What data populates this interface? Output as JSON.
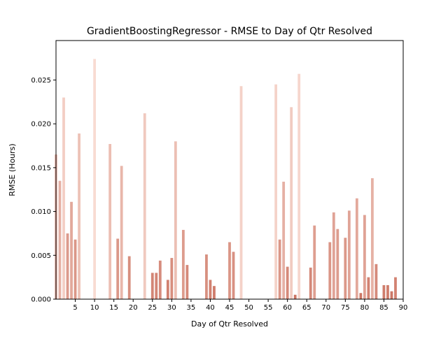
{
  "chart_data": {
    "type": "bar",
    "title": "GradientBoostingRegressor - RMSE to Day of Qtr Resolved",
    "xlabel": "Day of Qtr Resolved",
    "ylabel": "RMSE (Hours)",
    "xlim": [
      0,
      90
    ],
    "ylim": [
      0,
      0.0295
    ],
    "xticks": [
      5,
      10,
      15,
      20,
      25,
      30,
      35,
      40,
      45,
      50,
      55,
      60,
      65,
      70,
      75,
      80,
      85,
      90
    ],
    "xtick_labels": [
      "5",
      "10",
      "15",
      "20",
      "25",
      "30",
      "35",
      "40",
      "45",
      "50",
      "55",
      "60",
      "65",
      "70",
      "75",
      "80",
      "85",
      "90"
    ],
    "yticks": [
      0,
      0.005,
      0.01,
      0.015,
      0.02,
      0.025
    ],
    "ytick_labels": [
      "0.000",
      "0.005",
      "0.010",
      "0.015",
      "0.020",
      "0.025"
    ],
    "grid": false,
    "color_scale": {
      "high": "#f8dbd2",
      "low": "#c96e5c"
    },
    "x": [
      0,
      1,
      2,
      3,
      4,
      5,
      6,
      10,
      14,
      16,
      17,
      19,
      23,
      25,
      26,
      27,
      29,
      30,
      31,
      33,
      34,
      39,
      40,
      41,
      45,
      46,
      48,
      57,
      58,
      59,
      60,
      61,
      62,
      63,
      66,
      67,
      71,
      72,
      73,
      75,
      76,
      78,
      79,
      80,
      81,
      82,
      83,
      85,
      86,
      87,
      88
    ],
    "values": [
      0.0165,
      0.0135,
      0.023,
      0.0075,
      0.0111,
      0.0068,
      0.0189,
      0.0274,
      0.0177,
      0.0069,
      0.0152,
      0.0049,
      0.0212,
      0.003,
      0.003,
      0.0044,
      0.0022,
      0.0047,
      0.018,
      0.0079,
      0.0039,
      0.0051,
      0.0022,
      0.0015,
      0.0065,
      0.0054,
      0.0243,
      0.0245,
      0.0068,
      0.0134,
      0.0037,
      0.0219,
      0.0005,
      0.0257,
      0.0036,
      0.0084,
      0.0065,
      0.0099,
      0.008,
      0.007,
      0.0101,
      0.0115,
      0.0007,
      0.0096,
      0.0025,
      0.0138,
      0.004,
      0.0016,
      0.0016,
      0.0009,
      0.0025
    ]
  }
}
